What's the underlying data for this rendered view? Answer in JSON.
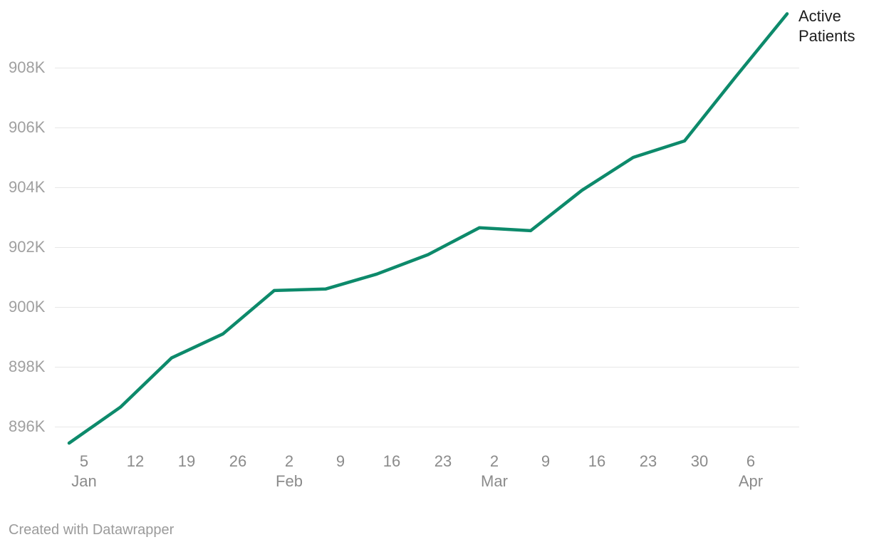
{
  "chart": {
    "annotation_label": "Active Patients",
    "footer_credit": "Created with Datawrapper"
  },
  "colors": {
    "line": "#0d8a6b",
    "grid": "#e7e7e7",
    "y_tick_label": "#a0a0a0",
    "x_tick_label": "#8b8b8b",
    "annotation_text": "#1d1d1d",
    "footer_text": "#9b9b9b",
    "background": "#ffffff"
  },
  "chart_data": {
    "type": "line",
    "title": "",
    "xlabel": "",
    "ylabel": "",
    "grid": "horizontal-only",
    "legend_position": "end-of-line-annotation",
    "ylim_thousands": [
      895,
      910
    ],
    "x": [
      "Jan 5",
      "Jan 12",
      "Jan 19",
      "Jan 26",
      "Feb 2",
      "Feb 9",
      "Feb 16",
      "Feb 23",
      "Mar 2",
      "Mar 9",
      "Mar 16",
      "Mar 23",
      "Mar 30",
      "Apr 6",
      "Apr 13"
    ],
    "series": [
      {
        "name": "Active Patients",
        "values_thousands": [
          895.45,
          896.65,
          898.3,
          899.1,
          900.55,
          900.6,
          901.1,
          901.75,
          902.65,
          902.55,
          903.9,
          905.0,
          905.55,
          907.7,
          909.8
        ]
      }
    ],
    "y_tick_labels": [
      "908K",
      "906K",
      "904K",
      "902K",
      "900K",
      "898K",
      "896K"
    ],
    "x_day_tick_labels": [
      "5",
      "12",
      "19",
      "26",
      "2",
      "9",
      "16",
      "23",
      "2",
      "9",
      "16",
      "23",
      "30",
      "6"
    ],
    "x_month_tick_labels": [
      "Jan",
      "Feb",
      "Mar",
      "Apr"
    ]
  }
}
